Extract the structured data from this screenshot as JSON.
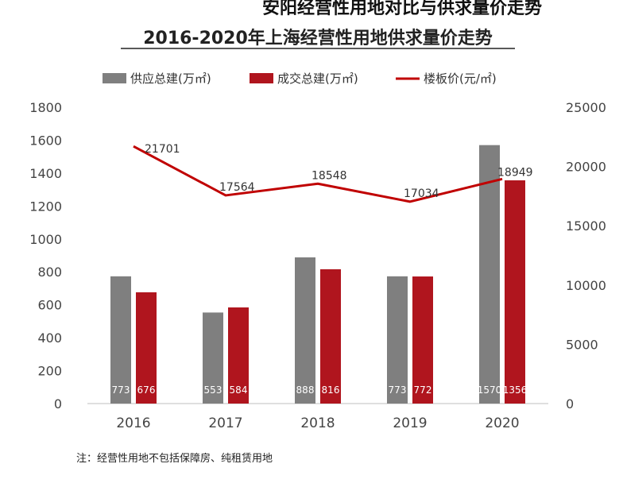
{
  "top_clipped_text": "安阳经营性用地对比与供求量价走势",
  "note": "注：经营性用地不包括保障房、纯租赁用地",
  "colors": {
    "supply": "#7f7f7f",
    "deal": "#b0151e",
    "price": "#c00000",
    "title_underline": "#222222"
  },
  "chart_data": {
    "type": "bar",
    "title": "2016-2020年上海经营性用地供求量价走势",
    "categories": [
      "2016",
      "2017",
      "2018",
      "2019",
      "2020"
    ],
    "series": [
      {
        "name": "供应总建(万㎡)",
        "type": "bar",
        "axis": "left",
        "values": [
          773,
          553,
          888,
          773,
          1570
        ]
      },
      {
        "name": "成交总建(万㎡)",
        "type": "bar",
        "axis": "left",
        "values": [
          676,
          584,
          816,
          772,
          1356
        ]
      },
      {
        "name": "楼板价(元/㎡)",
        "type": "line",
        "axis": "right",
        "values": [
          21701,
          17564,
          18548,
          17034,
          18949
        ]
      }
    ],
    "y_left": {
      "min": 0,
      "max": 1800,
      "ticks": [
        "0",
        "200",
        "400",
        "600",
        "800",
        "1000",
        "1200",
        "1400",
        "1600",
        "1800"
      ]
    },
    "y_right": {
      "min": 0,
      "max": 25000,
      "ticks": [
        "0",
        "5000",
        "10000",
        "15000",
        "20000",
        "25000"
      ]
    },
    "grid": false,
    "legend_position": "top"
  }
}
